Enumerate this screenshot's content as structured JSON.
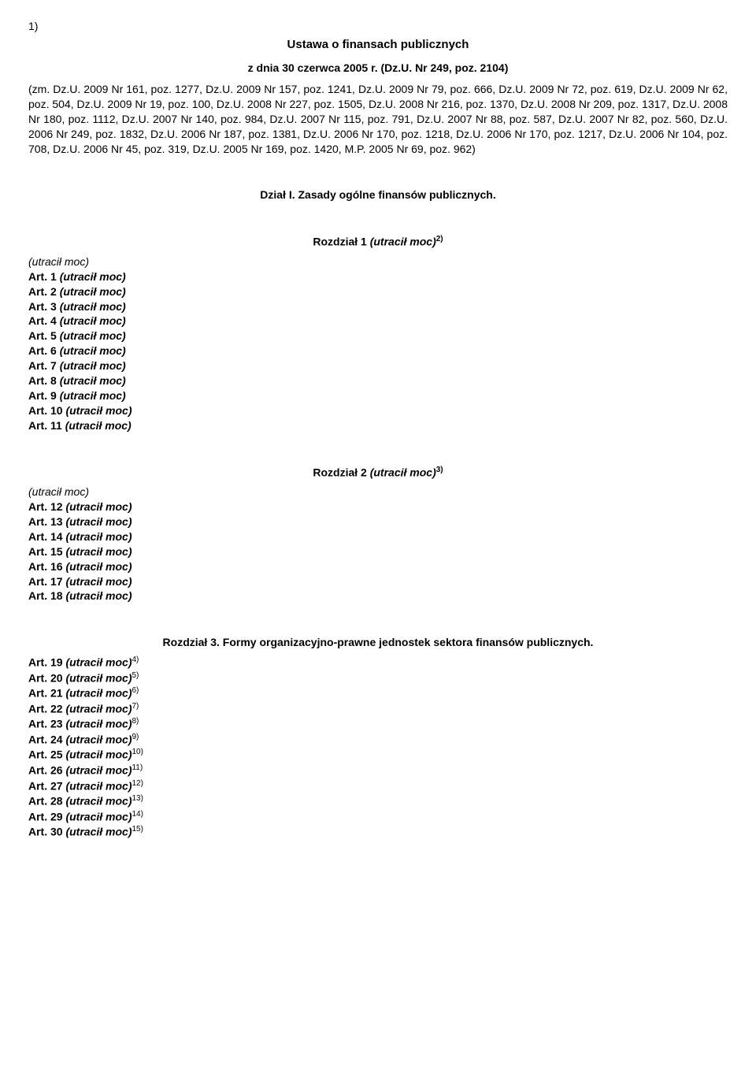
{
  "footnote1": "1)",
  "title": "Ustawa o finansach publicznych",
  "subtitle": "z dnia 30 czerwca 2005 r. (Dz.U. Nr 249, poz. 2104)",
  "amendments": "(zm. Dz.U. 2009 Nr 161, poz. 1277, Dz.U. 2009 Nr 157, poz. 1241, Dz.U. 2009 Nr 79, poz. 666, Dz.U. 2009 Nr 72, poz. 619, Dz.U. 2009 Nr 62, poz. 504, Dz.U. 2009 Nr 19, poz. 100, Dz.U. 2008 Nr 227, poz. 1505, Dz.U. 2008 Nr 216, poz. 1370, Dz.U. 2008 Nr 209, poz. 1317, Dz.U. 2008 Nr 180, poz. 1112, Dz.U. 2007 Nr 140, poz. 984, Dz.U. 2007 Nr 115, poz. 791, Dz.U. 2007 Nr 88, poz. 587, Dz.U. 2007 Nr 82, poz. 560, Dz.U. 2006 Nr 249, poz. 1832, Dz.U. 2006 Nr 187, poz. 1381, Dz.U. 2006 Nr 170, poz. 1218, Dz.U. 2006 Nr 170, poz. 1217, Dz.U. 2006 Nr 104, poz. 708, Dz.U. 2006 Nr 45, poz. 319, Dz.U. 2005 Nr 169, poz. 1420, M.P. 2005 Nr 69, poz. 962)",
  "dzial1": "Dział I. Zasady ogólne finansów publicznych.",
  "chapter1": {
    "heading_prefix": "Rozdział 1 ",
    "heading_italic": "(utracił moc)",
    "heading_sup": "2)",
    "intro": "(utracił moc)",
    "articles": [
      {
        "n": "1"
      },
      {
        "n": "2"
      },
      {
        "n": "3"
      },
      {
        "n": "4"
      },
      {
        "n": "5"
      },
      {
        "n": "6"
      },
      {
        "n": "7"
      },
      {
        "n": "8"
      },
      {
        "n": "9"
      },
      {
        "n": "10"
      },
      {
        "n": "11"
      }
    ]
  },
  "chapter2": {
    "heading_prefix": "Rozdział 2 ",
    "heading_italic": "(utracił moc)",
    "heading_sup": "3)",
    "intro": "(utracił moc)",
    "articles": [
      {
        "n": "12"
      },
      {
        "n": "13"
      },
      {
        "n": "14"
      },
      {
        "n": "15"
      },
      {
        "n": "16"
      },
      {
        "n": "17"
      },
      {
        "n": "18"
      }
    ]
  },
  "chapter3": {
    "heading": "Rozdział 3. Formy organizacyjno-prawne jednostek sektora finansów publicznych.",
    "articles": [
      {
        "n": "19",
        "sup": "4)"
      },
      {
        "n": "20",
        "sup": "5)"
      },
      {
        "n": "21",
        "sup": "6)"
      },
      {
        "n": "22",
        "sup": "7)"
      },
      {
        "n": "23",
        "sup": "8)"
      },
      {
        "n": "24",
        "sup": "9)"
      },
      {
        "n": "25",
        "sup": "10)"
      },
      {
        "n": "26",
        "sup": "11)"
      },
      {
        "n": "27",
        "sup": "12)"
      },
      {
        "n": "28",
        "sup": "13)"
      },
      {
        "n": "29",
        "sup": "14)"
      },
      {
        "n": "30",
        "sup": "15)"
      }
    ]
  },
  "art_prefix": "Art. ",
  "art_suffix_italic": "(utracił moc)"
}
